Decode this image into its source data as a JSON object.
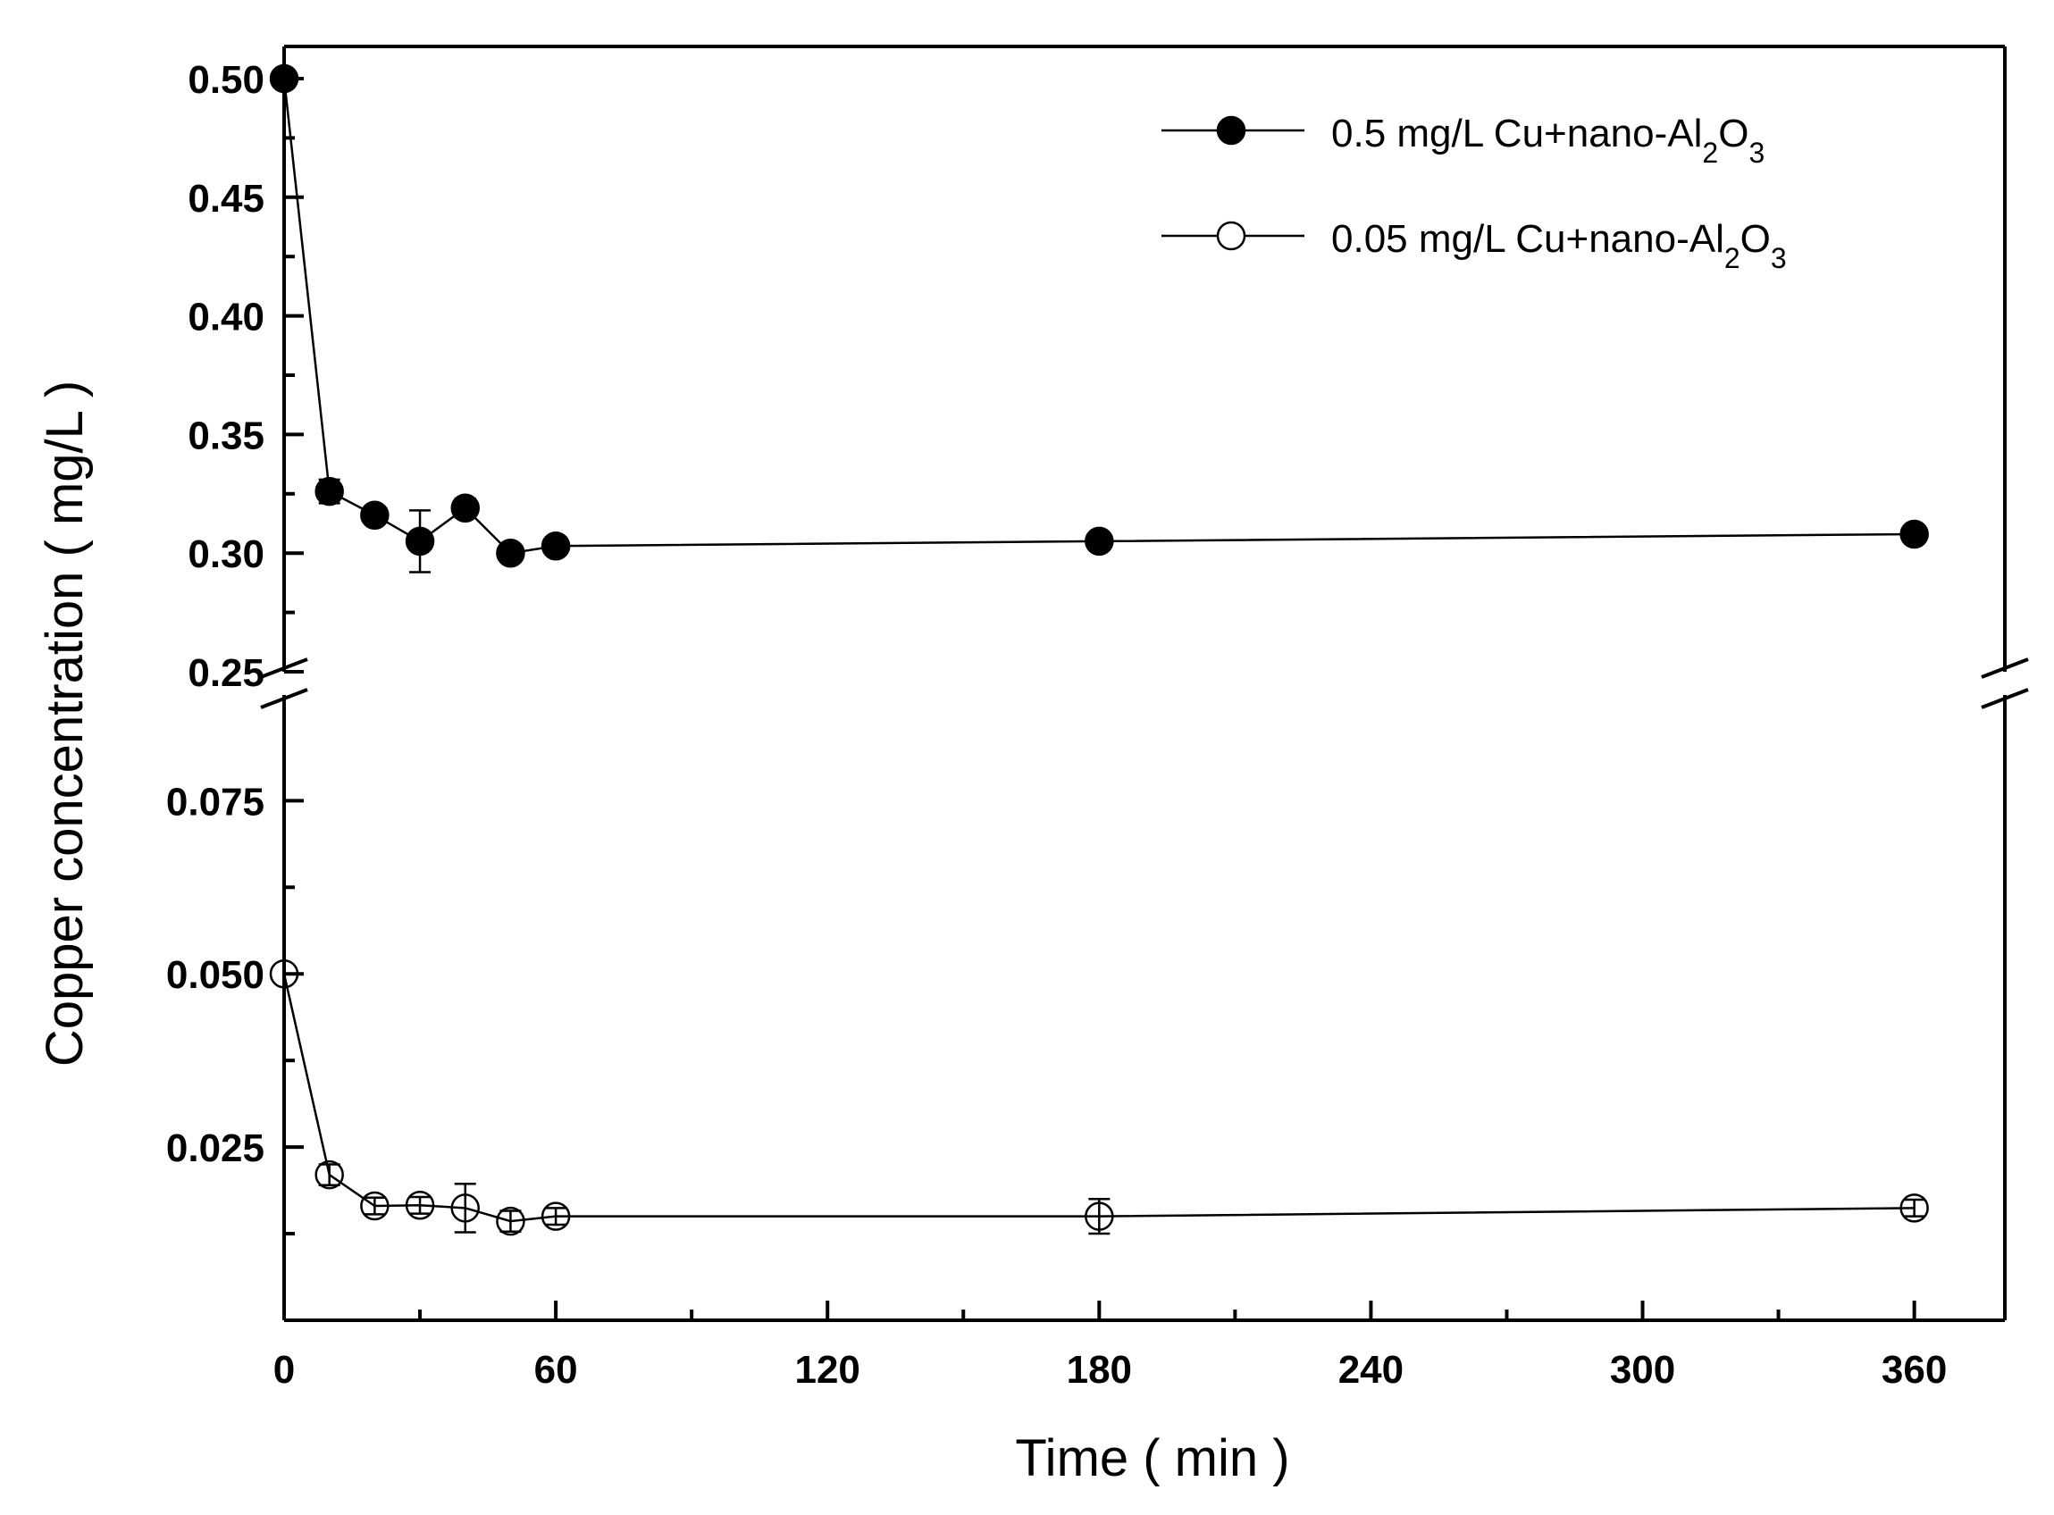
{
  "chart_data": {
    "type": "line",
    "title": "",
    "xlabel": "Time ( min )",
    "ylabel": "Copper concentration ( mg/L )",
    "xlim": [
      0,
      380
    ],
    "x_ticks": [
      {
        "value": 0,
        "label": "0"
      },
      {
        "value": 60,
        "label": "60"
      },
      {
        "value": 120,
        "label": "120"
      },
      {
        "value": 180,
        "label": "180"
      },
      {
        "value": 240,
        "label": "240"
      },
      {
        "value": 300,
        "label": "300"
      },
      {
        "value": 360,
        "label": "360"
      }
    ],
    "y_axis_break": true,
    "y_upper_range": [
      0.25,
      0.5
    ],
    "y_lower_range": [
      0,
      0.09
    ],
    "y_ticks_upper": [
      {
        "value": 0.25,
        "label": "0.25"
      },
      {
        "value": 0.3,
        "label": "0.30"
      },
      {
        "value": 0.35,
        "label": "0.35"
      },
      {
        "value": 0.4,
        "label": "0.40"
      },
      {
        "value": 0.45,
        "label": "0.45"
      },
      {
        "value": 0.5,
        "label": "0.50"
      }
    ],
    "y_ticks_lower": [
      {
        "value": 0.025,
        "label": "0.025"
      },
      {
        "value": 0.05,
        "label": "0.050"
      },
      {
        "value": 0.075,
        "label": "0.075"
      }
    ],
    "legend_position": "top-right",
    "grid": false,
    "series": [
      {
        "legend_main": "0.5 mg/L Cu+nano-Al",
        "legend_sub1": "2",
        "legend_mid": "O",
        "legend_sub2": "3",
        "marker": "filled-circle",
        "color": "#000000",
        "x": [
          0,
          10,
          20,
          30,
          40,
          50,
          60,
          180,
          360
        ],
        "y": [
          0.5,
          0.326,
          0.316,
          0.305,
          0.319,
          0.3,
          0.303,
          0.305,
          0.308
        ],
        "error": [
          0,
          0.005,
          0.003,
          0.013,
          0.004,
          0.002,
          0.002,
          0.002,
          0.002
        ]
      },
      {
        "legend_main": "0.05 mg/L Cu+nano-Al",
        "legend_sub1": "2",
        "legend_mid": "O",
        "legend_sub2": "3",
        "marker": "open-circle",
        "color": "#000000",
        "x": [
          0,
          10,
          20,
          30,
          40,
          50,
          60,
          180,
          360
        ],
        "y": [
          0.05,
          0.021,
          0.0165,
          0.0166,
          0.0162,
          0.0143,
          0.015,
          0.015,
          0.0162
        ],
        "error": [
          0,
          0.0015,
          0.0012,
          0.0012,
          0.0035,
          0.0015,
          0.0012,
          0.0025,
          0.0012
        ]
      }
    ]
  }
}
